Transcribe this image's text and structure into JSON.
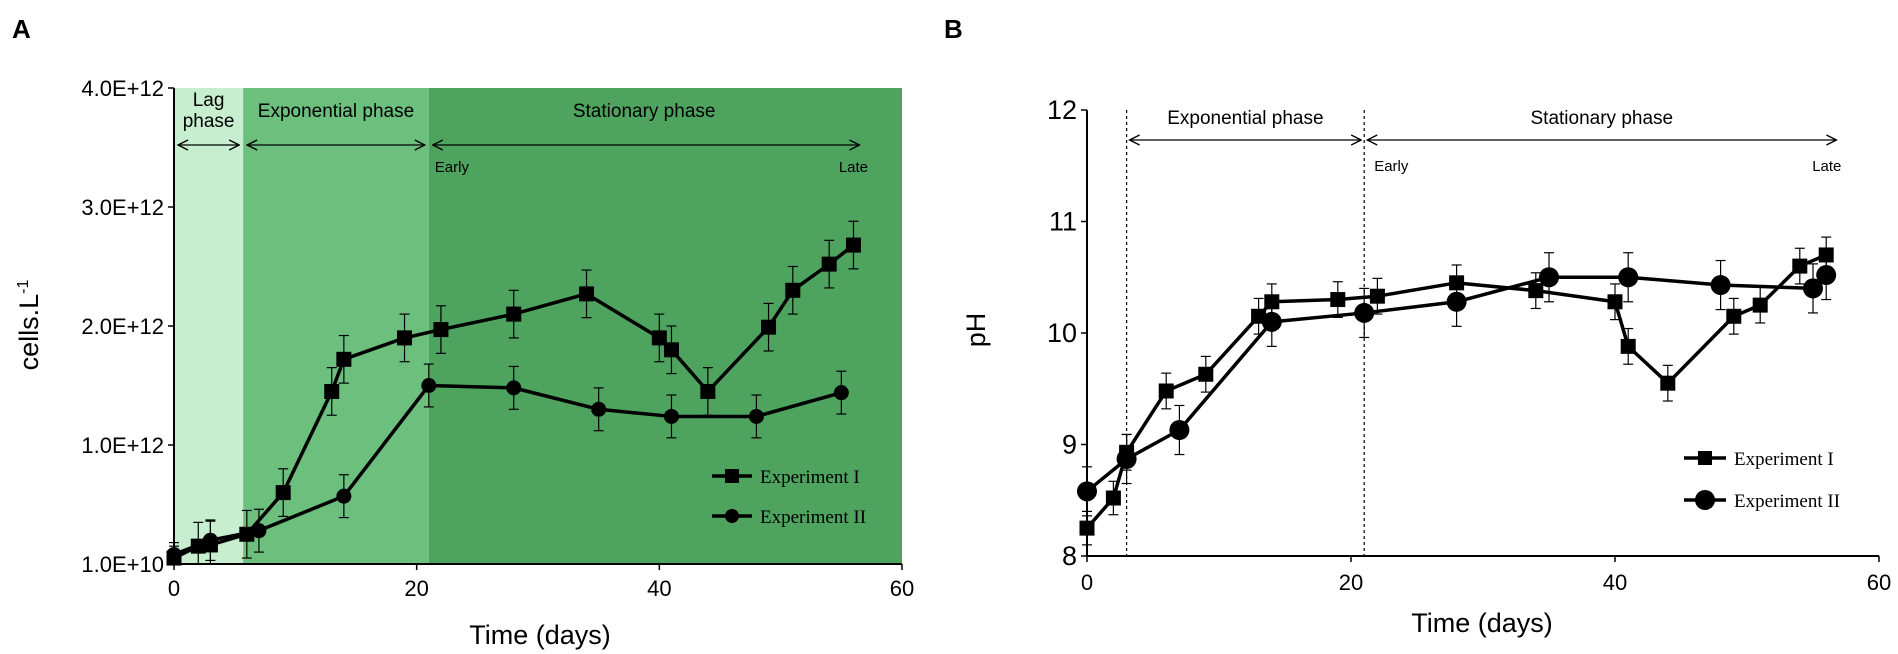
{
  "chart_data": [
    {
      "panel": "A",
      "type": "line",
      "xlabel": "Time (days)",
      "ylabel_main": "cells.L",
      "ylabel_sup": "-1",
      "xlim": [
        0,
        60
      ],
      "ylim": [
        0,
        4
      ],
      "xticks": [
        0,
        20,
        40,
        60
      ],
      "yticks": [
        {
          "v": 0,
          "label": "1.0E+10"
        },
        {
          "v": 1,
          "label": "1.0E+12"
        },
        {
          "v": 2,
          "label": "2.0E+12"
        },
        {
          "v": 3,
          "label": "3.0E+12"
        },
        {
          "v": 4,
          "label": "4.0E+12"
        }
      ],
      "phases": [
        {
          "x0": 0,
          "x1": 5.7,
          "color": "#c7efcf",
          "label": "Lag phase",
          "label_lines": [
            "Lag",
            "phase"
          ]
        },
        {
          "x0": 5.7,
          "x1": 21,
          "color": "#6dbf7e",
          "label": "Exponential phase"
        },
        {
          "x0": 21,
          "x1": 60,
          "color": "#4ea45f",
          "label": "Stationary phase",
          "start_label": "Early",
          "end_label": "Late"
        }
      ],
      "series": [
        {
          "name": "Experiment I",
          "marker": "square",
          "points": [
            [
              0,
              0.05
            ],
            [
              2,
              0.15
            ],
            [
              3,
              0.16
            ],
            [
              6,
              0.25
            ],
            [
              9,
              0.6
            ],
            [
              13,
              1.45
            ],
            [
              14,
              1.72
            ],
            [
              19,
              1.9
            ],
            [
              22,
              1.97
            ],
            [
              28,
              2.1
            ],
            [
              34,
              2.27
            ],
            [
              40,
              1.9
            ],
            [
              41,
              1.8
            ],
            [
              44,
              1.45
            ],
            [
              49,
              1.99
            ],
            [
              51,
              2.3
            ],
            [
              54,
              2.52
            ],
            [
              56,
              2.68
            ]
          ],
          "err": [
            0.1,
            0.2,
            0.2,
            0.2,
            0.2,
            0.2,
            0.2,
            0.2,
            0.2,
            0.2,
            0.2,
            0.2,
            0.2,
            0.2,
            0.2,
            0.2,
            0.2,
            0.2
          ]
        },
        {
          "name": "Experiment II",
          "marker": "circle",
          "points": [
            [
              0,
              0.08
            ],
            [
              3,
              0.2
            ],
            [
              7,
              0.28
            ],
            [
              14,
              0.57
            ],
            [
              21,
              1.5
            ],
            [
              28,
              1.48
            ],
            [
              35,
              1.3
            ],
            [
              41,
              1.24
            ],
            [
              48,
              1.24
            ],
            [
              55,
              1.44
            ]
          ],
          "err": [
            0.1,
            0.17,
            0.18,
            0.18,
            0.18,
            0.18,
            0.18,
            0.18,
            0.18,
            0.18
          ]
        }
      ],
      "legend_position": "bottom-right",
      "grid": false
    },
    {
      "panel": "B",
      "type": "line",
      "xlabel": "Time (days)",
      "ylabel": "pH",
      "xlim": [
        0,
        60
      ],
      "ylim": [
        8,
        12
      ],
      "xticks": [
        0,
        20,
        40,
        60
      ],
      "yticks": [
        8,
        9,
        10,
        11,
        12
      ],
      "phase_lines": [
        3,
        21
      ],
      "phases": [
        {
          "x0": 3,
          "x1": 21,
          "label": "Exponential phase"
        },
        {
          "x0": 21,
          "x1": 57,
          "label": "Stationary phase",
          "start_label": "Early",
          "end_label": "Late"
        }
      ],
      "series": [
        {
          "name": "Experiment I",
          "marker": "square",
          "points": [
            [
              0,
              8.25
            ],
            [
              2,
              8.52
            ],
            [
              3,
              8.93
            ],
            [
              6,
              9.48
            ],
            [
              9,
              9.63
            ],
            [
              13,
              10.15
            ],
            [
              14,
              10.28
            ],
            [
              19,
              10.3
            ],
            [
              22,
              10.33
            ],
            [
              28,
              10.45
            ],
            [
              34,
              10.38
            ],
            [
              40,
              10.28
            ],
            [
              41,
              9.88
            ],
            [
              44,
              9.55
            ],
            [
              49,
              10.15
            ],
            [
              51,
              10.25
            ],
            [
              54,
              10.6
            ],
            [
              56,
              10.7
            ]
          ],
          "err": [
            0.15,
            0.15,
            0.16,
            0.16,
            0.16,
            0.16,
            0.16,
            0.16,
            0.16,
            0.16,
            0.16,
            0.16,
            0.16,
            0.16,
            0.16,
            0.16,
            0.16,
            0.16
          ]
        },
        {
          "name": "Experiment II",
          "marker": "circle",
          "points": [
            [
              0,
              8.58
            ],
            [
              3,
              8.87
            ],
            [
              7,
              9.13
            ],
            [
              14,
              10.1
            ],
            [
              21,
              10.18
            ],
            [
              28,
              10.28
            ],
            [
              35,
              10.5
            ],
            [
              41,
              10.5
            ],
            [
              48,
              10.43
            ],
            [
              55,
              10.4
            ],
            [
              56,
              10.52
            ]
          ],
          "err": [
            0.22,
            0.22,
            0.22,
            0.22,
            0.22,
            0.22,
            0.22,
            0.22,
            0.22,
            0.22,
            0.22
          ]
        }
      ],
      "legend_position": "bottom-right",
      "grid": false
    }
  ]
}
